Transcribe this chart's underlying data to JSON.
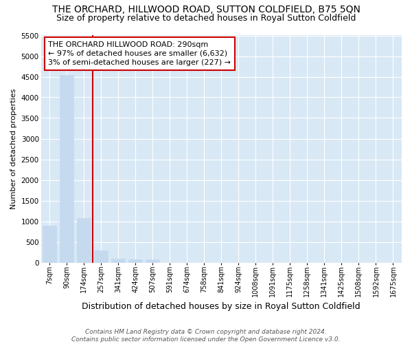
{
  "title": "THE ORCHARD, HILLWOOD ROAD, SUTTON COLDFIELD, B75 5QN",
  "subtitle": "Size of property relative to detached houses in Royal Sutton Coldfield",
  "xlabel": "Distribution of detached houses by size in Royal Sutton Coldfield",
  "ylabel": "Number of detached properties",
  "footnote": "Contains HM Land Registry data © Crown copyright and database right 2024.\nContains public sector information licensed under the Open Government Licence v3.0.",
  "categories": [
    "7sqm",
    "90sqm",
    "174sqm",
    "257sqm",
    "341sqm",
    "424sqm",
    "507sqm",
    "591sqm",
    "674sqm",
    "758sqm",
    "841sqm",
    "924sqm",
    "1008sqm",
    "1091sqm",
    "1175sqm",
    "1258sqm",
    "1341sqm",
    "1425sqm",
    "1508sqm",
    "1592sqm",
    "1675sqm"
  ],
  "values": [
    900,
    4550,
    1075,
    300,
    100,
    80,
    80,
    0,
    0,
    0,
    0,
    0,
    0,
    0,
    0,
    0,
    0,
    0,
    0,
    0,
    0
  ],
  "bar_color": "#c5d9ef",
  "vline_x": 2.5,
  "vline_color": "#cc0000",
  "annotation_text": "THE ORCHARD HILLWOOD ROAD: 290sqm\n← 97% of detached houses are smaller (6,632)\n3% of semi-detached houses are larger (227) →",
  "annotation_box_facecolor": "#ffffff",
  "annotation_box_edgecolor": "#cc0000",
  "ylim": [
    0,
    5500
  ],
  "yticks": [
    0,
    500,
    1000,
    1500,
    2000,
    2500,
    3000,
    3500,
    4000,
    4500,
    5000,
    5500
  ],
  "plot_bg_color": "#d8e8f5",
  "figure_bg_color": "#ffffff",
  "grid_color": "#ffffff",
  "title_fontsize": 10,
  "subtitle_fontsize": 9,
  "footnote_fontsize": 6.5,
  "ylabel_fontsize": 8,
  "xlabel_fontsize": 9,
  "annotation_fontsize": 8
}
